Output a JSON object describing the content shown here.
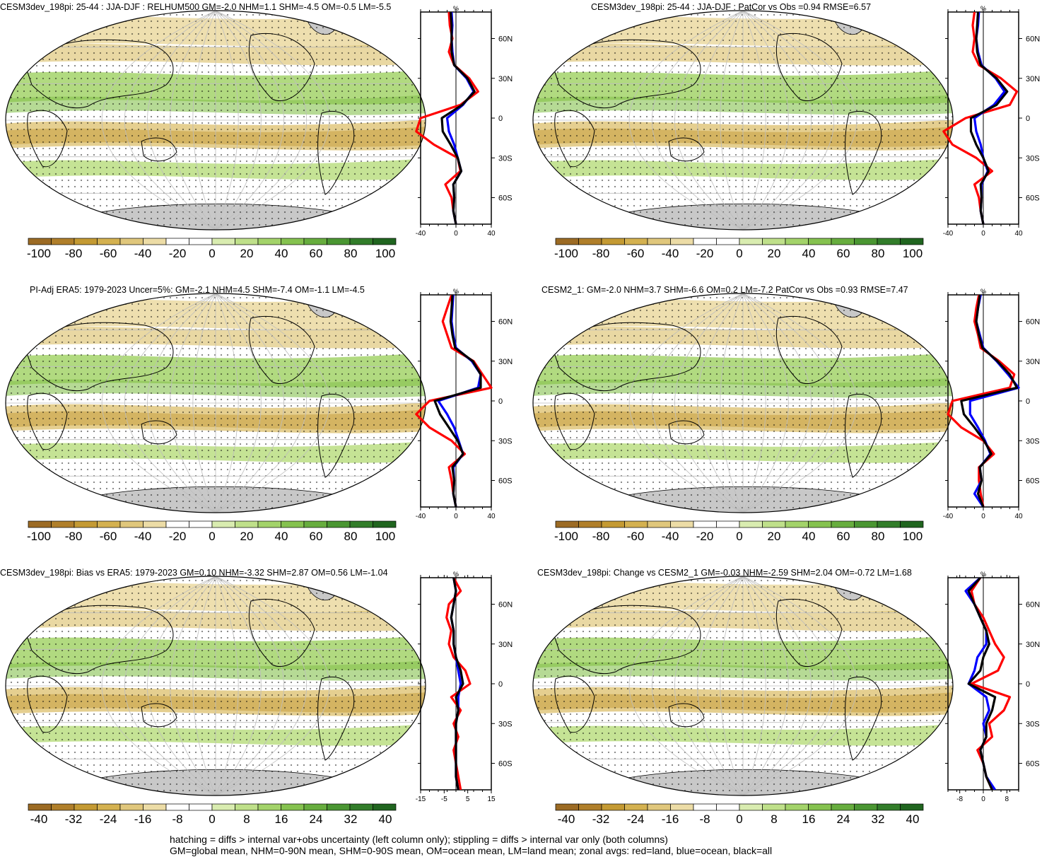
{
  "panels": [
    {
      "title": "CESM3dev_198pi: 25-44 : JJA-DJF : RELHUM500 GM=-2.0 NHM=1.1 SHM=-4.5 OM=-0.5 LM=-5.5"
    },
    {
      "title": "CESM3dev_198pi: 25-44 : JJA-DJF : PatCor vs Obs =0.94 RMSE=6.57"
    },
    {
      "title": "PI-Adj ERA5: 1979-2023 Uncer=5%: GM=-2.1 NHM=4.5 SHM=-7.4 OM=-1.1 LM=-4.5"
    },
    {
      "title": "CESM2_1: GM=-2.0 NHM=3.7 SHM=-6.6 OM=0.2 LM=-7.2 PatCor vs Obs =0.93 RMSE=7.47"
    },
    {
      "title": "CESM3dev_198pi: Bias vs ERA5: 1979-2023 GM=0.10 NHM=-3.32 SHM=2.87 OM=0.56 LM=-1.04"
    },
    {
      "title": "CESM3dev_198pi: Change vs CESM2_1 GM=-0.03 NHM=-2.59 SHM=2.04 OM=-0.72 LM=1.68"
    }
  ],
  "footer": {
    "line1": "hatching = diffs > internal var+obs uncertainty (left column only); stippling = diffs > internal var only (both columns)",
    "line2": "GM=global mean, NHM=0-90N mean, SHM=0-90S mean, OM=ocean mean, LM=land mean; zonal avgs: red=land, blue=ocean, black=all"
  },
  "chart_data": [
    {
      "type": "heatmap",
      "map_projection": "robinson",
      "units": "%",
      "lat_ticks": [
        "60N",
        "30N",
        "0",
        "30S",
        "60S"
      ],
      "colorbar": {
        "labels": [
          "-100",
          "-80",
          "-60",
          "-40",
          "-20",
          "0",
          "20",
          "40",
          "60",
          "80",
          "100"
        ]
      },
      "profile": {
        "type": "line",
        "xlabel": "%",
        "xticks": [
          "-40",
          "0",
          "40"
        ],
        "xlim": [
          -40,
          40
        ],
        "ylim": [
          -80,
          80
        ],
        "lat": [
          80,
          70,
          60,
          50,
          40,
          30,
          20,
          10,
          0,
          -10,
          -20,
          -30,
          -40,
          -50,
          -60,
          -70,
          -80
        ],
        "series": [
          {
            "name": "red=land",
            "color": "#ff0000",
            "values": [
              -8,
              -7,
              -4,
              -8,
              -2,
              15,
              25,
              5,
              -40,
              -45,
              -25,
              2,
              5,
              -12,
              -5,
              -3,
              0
            ]
          },
          {
            "name": "blue=ocean",
            "color": "#0000ff",
            "values": [
              -5,
              -4,
              -5,
              -4,
              -2,
              12,
              20,
              8,
              -10,
              -8,
              -2,
              2,
              6,
              -3,
              -2,
              -3,
              0
            ]
          },
          {
            "name": "black=all",
            "color": "#000000",
            "values": [
              -6,
              -5,
              -5,
              -5,
              -2,
              13,
              21,
              7,
              -16,
              -15,
              -6,
              2,
              6,
              -3,
              -2,
              -3,
              0
            ]
          }
        ]
      }
    },
    {
      "type": "heatmap",
      "map_projection": "robinson",
      "units": "%",
      "lat_ticks": [
        "60N",
        "30N",
        "0",
        "30S",
        "60S"
      ],
      "colorbar": {
        "labels": [
          "-100",
          "-80",
          "-60",
          "-40",
          "-20",
          "0",
          "20",
          "40",
          "60",
          "80",
          "100"
        ]
      },
      "profile": {
        "type": "line",
        "xlabel": "%",
        "xticks": [
          "-40",
          "0",
          "40"
        ],
        "xlim": [
          -40,
          40
        ],
        "ylim": [
          -80,
          80
        ],
        "lat": [
          80,
          70,
          60,
          50,
          40,
          30,
          20,
          10,
          0,
          -10,
          -20,
          -30,
          -40,
          -50,
          -60,
          -70,
          -80
        ],
        "series": [
          {
            "name": "red=land",
            "color": "#ff0000",
            "values": [
              -10,
              -12,
              -10,
              -12,
              -5,
              20,
              38,
              30,
              -20,
              -45,
              -35,
              -8,
              10,
              -10,
              -5,
              -3,
              0
            ]
          },
          {
            "name": "blue=ocean",
            "color": "#0000ff",
            "values": [
              -5,
              -6,
              -8,
              -6,
              -2,
              14,
              24,
              12,
              -10,
              -8,
              -3,
              0,
              5,
              -2,
              -2,
              -3,
              0
            ]
          },
          {
            "name": "black=all",
            "color": "#000000",
            "values": [
              -6,
              -7,
              -8,
              -7,
              -3,
              15,
              27,
              15,
              -14,
              -14,
              -8,
              0,
              6,
              -3,
              -2,
              -3,
              0
            ]
          }
        ]
      }
    },
    {
      "type": "heatmap",
      "map_projection": "robinson",
      "units": "%",
      "lat_ticks": [
        "60N",
        "30N",
        "0",
        "30S",
        "60S"
      ],
      "colorbar": {
        "labels": [
          "-100",
          "-80",
          "-60",
          "-40",
          "-20",
          "0",
          "20",
          "40",
          "60",
          "80",
          "100"
        ]
      },
      "profile": {
        "type": "line",
        "xlabel": "%",
        "xticks": [
          "-40",
          "0",
          "40"
        ],
        "xlim": [
          -40,
          40
        ],
        "ylim": [
          -80,
          80
        ],
        "lat": [
          80,
          70,
          60,
          50,
          40,
          30,
          20,
          10,
          0,
          -10,
          -20,
          -30,
          -40,
          -50,
          -60,
          -70,
          -80
        ],
        "series": [
          {
            "name": "red=land",
            "color": "#ff0000",
            "values": [
              -5,
              -10,
              -15,
              -10,
              -5,
              20,
              30,
              40,
              -30,
              -45,
              -30,
              -5,
              10,
              -8,
              -5,
              -3,
              0
            ]
          },
          {
            "name": "blue=ocean",
            "color": "#0000ff",
            "values": [
              -3,
              -4,
              -5,
              -3,
              0,
              18,
              28,
              25,
              -20,
              -10,
              -2,
              3,
              8,
              -3,
              -2,
              -3,
              0
            ]
          },
          {
            "name": "black=all",
            "color": "#000000",
            "values": [
              -4,
              -5,
              -6,
              -4,
              -1,
              19,
              28,
              28,
              -24,
              -18,
              -8,
              2,
              8,
              -4,
              -2,
              -3,
              0
            ]
          }
        ]
      }
    },
    {
      "type": "heatmap",
      "map_projection": "robinson",
      "units": "%",
      "lat_ticks": [
        "60N",
        "30N",
        "0",
        "30S",
        "60S"
      ],
      "colorbar": {
        "labels": [
          "-100",
          "-80",
          "-60",
          "-40",
          "-20",
          "0",
          "20",
          "40",
          "60",
          "80",
          "100"
        ]
      },
      "profile": {
        "type": "line",
        "xlabel": "%",
        "xticks": [
          "-40",
          "0",
          "40"
        ],
        "xlim": [
          -40,
          40
        ],
        "ylim": [
          -80,
          80
        ],
        "lat": [
          80,
          70,
          60,
          50,
          40,
          30,
          20,
          10,
          0,
          -10,
          -20,
          -30,
          -40,
          -50,
          -60,
          -70,
          -80
        ],
        "series": [
          {
            "name": "red=land",
            "color": "#ff0000",
            "values": [
              -5,
              -8,
              -10,
              -6,
              -3,
              18,
              35,
              30,
              -35,
              -40,
              -25,
              0,
              12,
              -5,
              -5,
              -3,
              0
            ]
          },
          {
            "name": "blue=ocean",
            "color": "#0000ff",
            "values": [
              -3,
              -6,
              -8,
              -4,
              0,
              15,
              28,
              40,
              -15,
              -15,
              -6,
              2,
              8,
              -4,
              -2,
              -10,
              0
            ]
          },
          {
            "name": "black=all",
            "color": "#000000",
            "values": [
              -4,
              -6,
              -8,
              -5,
              -1,
              16,
              30,
              38,
              -25,
              -22,
              -10,
              1,
              9,
              -4,
              -2,
              -6,
              0
            ]
          }
        ]
      }
    },
    {
      "type": "heatmap",
      "map_projection": "robinson",
      "units": "%",
      "lat_ticks": [
        "60N",
        "30N",
        "0",
        "30S",
        "60S"
      ],
      "colorbar": {
        "labels": [
          "-40",
          "-32",
          "-24",
          "-16",
          "-8",
          "0",
          "8",
          "16",
          "24",
          "32",
          "40"
        ]
      },
      "profile": {
        "type": "line",
        "xlabel": "%",
        "xticks": [
          "-15",
          "-5",
          "5",
          "15"
        ],
        "xlim": [
          -15,
          15
        ],
        "ylim": [
          -80,
          80
        ],
        "lat": [
          80,
          70,
          60,
          50,
          40,
          30,
          20,
          10,
          0,
          -10,
          -20,
          -30,
          -40,
          -50,
          -60,
          -70,
          -80
        ],
        "series": [
          {
            "name": "red=land",
            "color": "#ff0000",
            "values": [
              -1,
              2,
              -3,
              -4,
              -2,
              -3,
              -1,
              4,
              6,
              -2,
              2,
              -1,
              1,
              -1,
              0,
              1,
              2
            ]
          },
          {
            "name": "blue=ocean",
            "color": "#0000ff",
            "values": [
              -1,
              0,
              -1,
              -2,
              -1,
              -1,
              0,
              1,
              2,
              1,
              1,
              0,
              0,
              0,
              0,
              0,
              1
            ]
          },
          {
            "name": "black=all",
            "color": "#000000",
            "values": [
              -1,
              0,
              -1,
              -2,
              -1,
              -1,
              0,
              2,
              3,
              0,
              1,
              0,
              0,
              0,
              0,
              0,
              1
            ]
          }
        ]
      }
    },
    {
      "type": "heatmap",
      "map_projection": "robinson",
      "units": "%",
      "lat_ticks": [
        "60N",
        "30N",
        "0",
        "30S",
        "60S"
      ],
      "colorbar": {
        "labels": [
          "-40",
          "-32",
          "-24",
          "-16",
          "-8",
          "0",
          "8",
          "16",
          "24",
          "32",
          "40"
        ]
      },
      "profile": {
        "type": "line",
        "xlabel": "%",
        "xticks": [
          "-8",
          "0",
          "8"
        ],
        "xlim": [
          -12,
          12
        ],
        "ylim": [
          -80,
          80
        ],
        "lat": [
          80,
          70,
          60,
          50,
          40,
          30,
          20,
          10,
          0,
          -10,
          -20,
          -30,
          -40,
          -50,
          -60,
          -70,
          -80
        ],
        "series": [
          {
            "name": "red=land",
            "color": "#ff0000",
            "values": [
              -1,
              -4,
              -3,
              0,
              2,
              4,
              7,
              5,
              -4,
              9,
              7,
              2,
              3,
              -2,
              0,
              1,
              3
            ]
          },
          {
            "name": "blue=ocean",
            "color": "#0000ff",
            "values": [
              -1,
              -6,
              -3,
              -1,
              1,
              1,
              -2,
              -3,
              -5,
              1,
              2,
              0,
              1,
              -1,
              0,
              1,
              4
            ]
          },
          {
            "name": "black=all",
            "color": "#000000",
            "values": [
              -1,
              -5,
              -3,
              -1,
              1,
              2,
              0,
              -1,
              -5,
              4,
              3,
              1,
              1,
              -1,
              0,
              1,
              3
            ]
          }
        ]
      }
    }
  ]
}
